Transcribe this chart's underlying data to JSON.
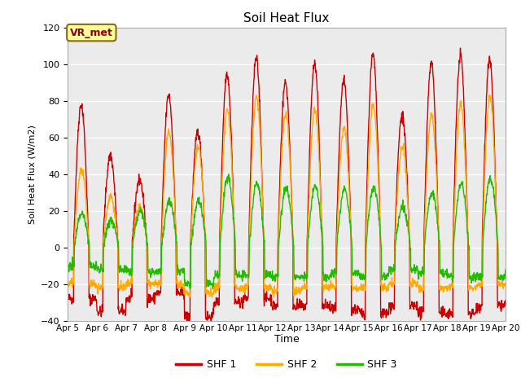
{
  "title": "Soil Heat Flux",
  "ylabel": "Soil Heat Flux (W/m2)",
  "xlabel": "Time",
  "ylim": [
    -40,
    120
  ],
  "yticks": [
    -40,
    -20,
    0,
    20,
    40,
    60,
    80,
    100,
    120
  ],
  "x_tick_labels": [
    "Apr 5",
    "Apr 6",
    "Apr 7",
    "Apr 8",
    "Apr 9",
    "Apr 10",
    "Apr 11",
    "Apr 12",
    "Apr 13",
    "Apr 14",
    "Apr 15",
    "Apr 16",
    "Apr 17",
    "Apr 18",
    "Apr 19",
    "Apr 20"
  ],
  "annotation_text": "VR_met",
  "colors": {
    "SHF1": "#cc0000",
    "SHF2": "#ffaa00",
    "SHF3": "#22bb00"
  },
  "legend_labels": [
    "SHF 1",
    "SHF 2",
    "SHF 3"
  ],
  "bg_color": "#ffffff",
  "plot_bg_color": "#ebebeb",
  "linewidth": 1.0,
  "shf1_peaks": [
    78,
    50,
    37,
    83,
    63,
    95,
    103,
    90,
    100,
    91,
    105,
    72,
    101,
    105,
    102,
    107
  ],
  "shf2_peaks": [
    42,
    28,
    22,
    63,
    55,
    75,
    82,
    73,
    75,
    65,
    78,
    55,
    72,
    78,
    82,
    80
  ],
  "shf3_peaks": [
    18,
    15,
    20,
    25,
    25,
    38,
    35,
    32,
    33,
    32,
    33,
    22,
    30,
    35,
    38,
    40
  ],
  "shf1_trough": [
    -28,
    -35,
    -28,
    -25,
    -38,
    -30,
    -28,
    -32,
    -32,
    -34,
    -36,
    -32,
    -36,
    -36,
    -32,
    -30
  ],
  "shf2_trough": [
    -20,
    -22,
    -20,
    -20,
    -25,
    -22,
    -22,
    -24,
    -22,
    -22,
    -22,
    -20,
    -22,
    -22,
    -20,
    -20
  ],
  "shf3_trough": [
    -10,
    -12,
    -13,
    -13,
    -20,
    -15,
    -15,
    -16,
    -16,
    -14,
    -16,
    -12,
    -14,
    -16,
    -16,
    -12
  ]
}
